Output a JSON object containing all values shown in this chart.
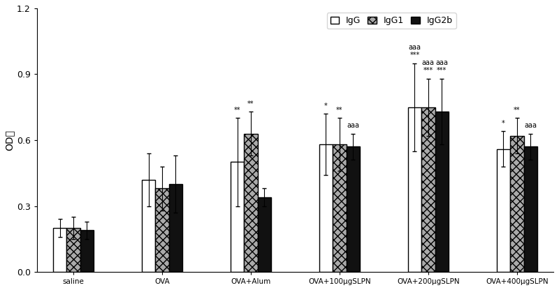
{
  "groups": [
    "saline",
    "OVA",
    "OVA+Alum",
    "OVA+100μgSLPN",
    "OVA+200μgSLPN",
    "OVA+400μgSLPN"
  ],
  "series": [
    "IgG",
    "IgG1",
    "IgG2b"
  ],
  "values": [
    [
      0.2,
      0.2,
      0.19
    ],
    [
      0.42,
      0.38,
      0.4
    ],
    [
      0.5,
      0.63,
      0.34
    ],
    [
      0.58,
      0.58,
      0.57
    ],
    [
      0.75,
      0.75,
      0.73
    ],
    [
      0.56,
      0.62,
      0.57
    ]
  ],
  "errors": [
    [
      0.04,
      0.05,
      0.04
    ],
    [
      0.12,
      0.1,
      0.13
    ],
    [
      0.2,
      0.1,
      0.04
    ],
    [
      0.14,
      0.12,
      0.06
    ],
    [
      0.2,
      0.13,
      0.15
    ],
    [
      0.08,
      0.08,
      0.06
    ]
  ],
  "colors": [
    "#ffffff",
    "#aaaaaa",
    "#111111"
  ],
  "edgecolor": "#000000",
  "hatch": [
    null,
    "xxx",
    null
  ],
  "ylabel": "OD值",
  "ylim": [
    0.0,
    1.2
  ],
  "yticks": [
    0.0,
    0.3,
    0.6,
    0.9,
    1.2
  ],
  "bar_width": 0.13,
  "figsize": [
    8.0,
    4.16
  ],
  "dpi": 100,
  "ann_fontsize": 7.0
}
